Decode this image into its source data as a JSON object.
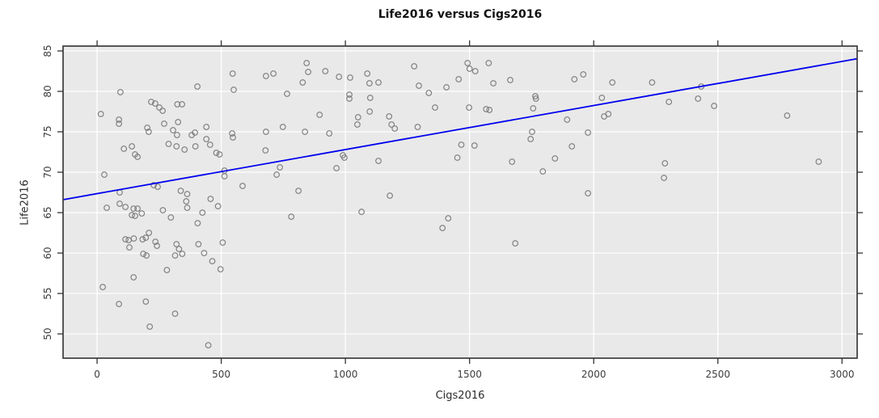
{
  "chart_data": {
    "type": "scatter",
    "title": "Life2016 versus Cigs2016",
    "xlabel": "Cigs2016",
    "ylabel": "Life2016",
    "x_ticks": [
      0,
      500,
      1000,
      1500,
      2000,
      2500,
      3000
    ],
    "y_ticks": [
      50,
      55,
      60,
      65,
      70,
      75,
      80,
      85
    ],
    "xlim": [
      -137,
      3061
    ],
    "ylim": [
      47.0,
      85.6
    ],
    "grid": true,
    "legend": "none",
    "marker": "open-circle",
    "regression_line": {
      "intercept": 67.35,
      "slope": 0.00545
    },
    "colors": {
      "panel_bg": "#e9e9e9",
      "grid": "#ffffff",
      "border": "#3c3c3c",
      "point_stroke": "#7e7e7e",
      "line": "#0000ee",
      "title": "#111111",
      "tick_text": "#3d3d3d",
      "tick_mark": "#333333"
    },
    "points": [
      [
        15,
        77.2
      ],
      [
        29,
        69.7
      ],
      [
        23,
        55.8
      ],
      [
        94,
        79.9
      ],
      [
        91,
        67.5
      ],
      [
        88,
        76.5
      ],
      [
        88,
        76.0
      ],
      [
        108,
        72.9
      ],
      [
        140,
        73.2
      ],
      [
        153,
        72.2
      ],
      [
        163,
        71.9
      ],
      [
        88,
        53.7
      ],
      [
        196,
        54.0
      ],
      [
        212,
        50.9
      ],
      [
        314,
        52.5
      ],
      [
        448,
        48.6
      ],
      [
        147,
        57.0
      ],
      [
        281,
        57.9
      ],
      [
        186,
        59.9
      ],
      [
        199,
        59.7
      ],
      [
        114,
        61.7
      ],
      [
        127,
        61.6
      ],
      [
        148,
        61.8
      ],
      [
        130,
        60.7
      ],
      [
        209,
        62.5
      ],
      [
        196,
        61.9
      ],
      [
        183,
        61.7
      ],
      [
        235,
        61.4
      ],
      [
        241,
        60.9
      ],
      [
        320,
        61.1
      ],
      [
        330,
        60.5
      ],
      [
        314,
        59.7
      ],
      [
        343,
        59.9
      ],
      [
        408,
        61.1
      ],
      [
        506,
        61.3
      ],
      [
        431,
        60.0
      ],
      [
        464,
        59.0
      ],
      [
        497,
        58.0
      ],
      [
        39,
        65.6
      ],
      [
        91,
        66.1
      ],
      [
        114,
        65.7
      ],
      [
        147,
        65.5
      ],
      [
        163,
        65.5
      ],
      [
        140,
        64.7
      ],
      [
        153,
        64.6
      ],
      [
        180,
        64.9
      ],
      [
        265,
        65.3
      ],
      [
        297,
        64.4
      ],
      [
        337,
        67.7
      ],
      [
        363,
        67.3
      ],
      [
        359,
        66.4
      ],
      [
        363,
        65.6
      ],
      [
        228,
        68.4
      ],
      [
        244,
        68.2
      ],
      [
        586,
        68.3
      ],
      [
        457,
        66.7
      ],
      [
        487,
        65.8
      ],
      [
        424,
        65.0
      ],
      [
        405,
        63.7
      ],
      [
        513,
        70.2
      ],
      [
        513,
        69.5
      ],
      [
        218,
        78.7
      ],
      [
        234,
        78.5
      ],
      [
        251,
        78.0
      ],
      [
        264,
        77.6
      ],
      [
        323,
        78.4
      ],
      [
        342,
        78.4
      ],
      [
        404,
        80.6
      ],
      [
        202,
        75.5
      ],
      [
        208,
        75.0
      ],
      [
        270,
        76.0
      ],
      [
        306,
        75.2
      ],
      [
        326,
        76.2
      ],
      [
        322,
        74.6
      ],
      [
        381,
        74.6
      ],
      [
        394,
        74.9
      ],
      [
        440,
        75.6
      ],
      [
        440,
        74.1
      ],
      [
        288,
        73.5
      ],
      [
        320,
        73.2
      ],
      [
        352,
        72.8
      ],
      [
        396,
        73.2
      ],
      [
        455,
        73.4
      ],
      [
        480,
        72.4
      ],
      [
        493,
        72.2
      ],
      [
        544,
        74.8
      ],
      [
        547,
        74.3
      ],
      [
        680,
        75.0
      ],
      [
        748,
        75.6
      ],
      [
        678,
        72.7
      ],
      [
        723,
        69.7
      ],
      [
        736,
        70.6
      ],
      [
        811,
        67.7
      ],
      [
        546,
        82.2
      ],
      [
        550,
        80.2
      ],
      [
        680,
        81.9
      ],
      [
        710,
        82.2
      ],
      [
        844,
        83.5
      ],
      [
        850,
        82.4
      ],
      [
        828,
        81.1
      ],
      [
        919,
        82.5
      ],
      [
        974,
        81.8
      ],
      [
        1019,
        81.7
      ],
      [
        1088,
        82.2
      ],
      [
        1097,
        81.0
      ],
      [
        1133,
        81.1
      ],
      [
        765,
        79.7
      ],
      [
        1016,
        79.6
      ],
      [
        1016,
        79.1
      ],
      [
        1100,
        79.2
      ],
      [
        1277,
        83.1
      ],
      [
        1492,
        83.5
      ],
      [
        1500,
        82.8
      ],
      [
        1523,
        82.5
      ],
      [
        1456,
        81.5
      ],
      [
        1296,
        80.7
      ],
      [
        1336,
        79.8
      ],
      [
        1407,
        80.5
      ],
      [
        1361,
        78.0
      ],
      [
        1498,
        78.0
      ],
      [
        1098,
        77.5
      ],
      [
        1051,
        76.8
      ],
      [
        1048,
        75.9
      ],
      [
        1176,
        76.9
      ],
      [
        1186,
        75.9
      ],
      [
        1199,
        75.4
      ],
      [
        1291,
        75.6
      ],
      [
        837,
        75.0
      ],
      [
        896,
        77.1
      ],
      [
        935,
        74.8
      ],
      [
        1467,
        73.4
      ],
      [
        1520,
        73.3
      ],
      [
        1451,
        71.8
      ],
      [
        990,
        72.1
      ],
      [
        996,
        71.8
      ],
      [
        1133,
        71.4
      ],
      [
        964,
        70.5
      ],
      [
        1179,
        67.1
      ],
      [
        782,
        64.5
      ],
      [
        1065,
        65.1
      ],
      [
        1414,
        64.3
      ],
      [
        1391,
        63.1
      ],
      [
        1684,
        61.2
      ],
      [
        1577,
        83.5
      ],
      [
        1596,
        81.0
      ],
      [
        1664,
        81.4
      ],
      [
        1922,
        81.5
      ],
      [
        1958,
        82.1
      ],
      [
        2075,
        81.1
      ],
      [
        2235,
        81.1
      ],
      [
        1765,
        79.4
      ],
      [
        1767,
        79.1
      ],
      [
        1756,
        77.9
      ],
      [
        1567,
        77.8
      ],
      [
        1580,
        77.7
      ],
      [
        2033,
        79.2
      ],
      [
        2303,
        78.7
      ],
      [
        2042,
        76.9
      ],
      [
        2059,
        77.2
      ],
      [
        1893,
        76.5
      ],
      [
        1977,
        74.9
      ],
      [
        1752,
        75.0
      ],
      [
        1746,
        74.1
      ],
      [
        1912,
        73.2
      ],
      [
        1844,
        71.7
      ],
      [
        1671,
        71.3
      ],
      [
        1795,
        70.1
      ],
      [
        2287,
        71.1
      ],
      [
        2283,
        69.3
      ],
      [
        1977,
        67.4
      ],
      [
        2433,
        80.6
      ],
      [
        2420,
        79.1
      ],
      [
        2485,
        78.2
      ],
      [
        2779,
        77.0
      ],
      [
        2906,
        71.3
      ]
    ]
  }
}
